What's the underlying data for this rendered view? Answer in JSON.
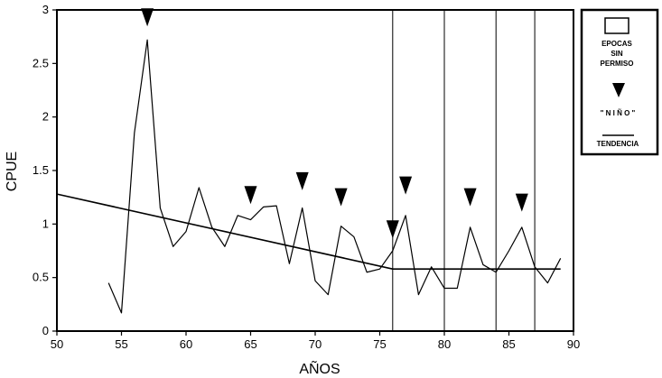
{
  "chart_data": {
    "type": "line",
    "xlabel": "AÑOS",
    "ylabel": "CPUE",
    "xlim": [
      50,
      90
    ],
    "ylim": [
      0,
      3
    ],
    "x_ticks": [
      "50",
      "55",
      "60",
      "65",
      "70",
      "75",
      "80",
      "85",
      "90"
    ],
    "y_ticks": [
      "0",
      "0.5",
      "1",
      "1.5",
      "2",
      "2.5",
      "3"
    ],
    "grid": false,
    "legend_position": "top-right",
    "series": [
      {
        "name": "CPUE",
        "x": [
          54,
          55,
          56,
          57,
          58,
          59,
          60,
          61,
          62,
          63,
          64,
          65,
          66,
          67,
          68,
          69,
          70,
          71,
          72,
          73,
          74,
          75,
          76,
          77,
          78,
          79,
          80,
          81,
          82,
          83,
          84,
          85,
          86,
          87,
          88,
          89
        ],
        "y": [
          0.45,
          0.17,
          1.85,
          2.72,
          1.15,
          0.79,
          0.93,
          1.34,
          0.97,
          0.79,
          1.08,
          1.04,
          1.16,
          1.17,
          0.63,
          1.15,
          0.47,
          0.34,
          0.98,
          0.88,
          0.55,
          0.58,
          0.75,
          1.08,
          0.34,
          0.6,
          0.4,
          0.4,
          0.97,
          0.62,
          0.55,
          0.75,
          0.97,
          0.6,
          0.45,
          0.68
        ]
      },
      {
        "name": "TENDENCIA",
        "x": [
          50,
          76,
          89
        ],
        "y": [
          1.28,
          0.58,
          0.58
        ]
      }
    ],
    "nino_markers": [
      {
        "x": 57,
        "y": 2.93
      },
      {
        "x": 65,
        "y": 1.27
      },
      {
        "x": 69,
        "y": 1.4
      },
      {
        "x": 72,
        "y": 1.25
      },
      {
        "x": 76,
        "y": 0.95
      },
      {
        "x": 77,
        "y": 1.36
      },
      {
        "x": 82,
        "y": 1.25
      },
      {
        "x": 86,
        "y": 1.2
      }
    ],
    "sin_permiso_lines": [
      76,
      80,
      84,
      87
    ]
  },
  "legend": {
    "epocas_line1": "EPOCAS",
    "epocas_line2": "SIN",
    "epocas_line3": "PERMISO",
    "nino": "\" N I Ñ O \"",
    "tendencia": "TENDENCIA"
  }
}
